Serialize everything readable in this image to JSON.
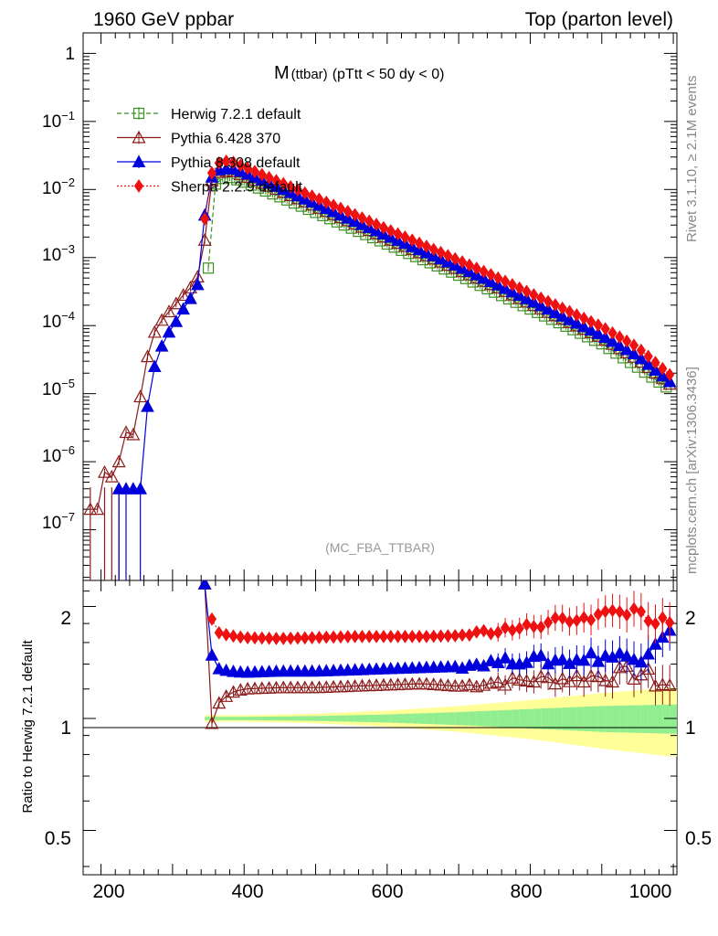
{
  "header": {
    "left": "1960 GeV ppbar",
    "right": "Top (parton level)"
  },
  "plot_title": {
    "main": "M",
    "sub": "(ttbar)",
    "rest": "(pTtt < 50 dy < 0)"
  },
  "watermark": "(MC_FBA_TTBAR)",
  "side_text": {
    "rivet": "Rivet 3.1.10, ≥ 2.1M events",
    "mcplots": "mcplots.cern.ch [arXiv:1306.3436]"
  },
  "ratio_ylabel": "Ratio to Herwig 7.2.1 default",
  "colors": {
    "herwig": "#3a8f1e",
    "pythia6": "#8b1a1a",
    "pythia8": "#0000dd",
    "sherpa": "#ee1111",
    "band_inner": "#90ee90",
    "band_outer": "#ffff99"
  },
  "chart_data": [
    {
      "type": "line",
      "panel": "main",
      "ylog": true,
      "xlim": [
        175,
        1005
      ],
      "ylim": [
        1.8e-08,
        2.0
      ],
      "x_ticks": [
        "200",
        "400",
        "600",
        "800",
        "1000"
      ],
      "y_ticks": [
        "1",
        "10^-1",
        "10^-2",
        "10^-3",
        "10^-4",
        "10^-5",
        "10^-6",
        "10^-7"
      ],
      "legend_position": "top-left",
      "series": [
        {
          "name": "Herwig 7.2.1 default",
          "key": "herwig",
          "marker": "open-square",
          "line": "dashed",
          "x": [
            350,
            360,
            370,
            380,
            400,
            450,
            500,
            550,
            600,
            650,
            700,
            750,
            800,
            850,
            900,
            950,
            995
          ],
          "y": [
            0.0007,
            0.012,
            0.0145,
            0.015,
            0.0128,
            0.0078,
            0.0046,
            0.0027,
            0.00158,
            0.00093,
            0.00055,
            0.00031,
            0.000175,
            9.8e-05,
            5.4e-05,
            2.45e-05,
            1.15e-05
          ]
        },
        {
          "name": "Pythia 6.428 370",
          "key": "pythia6",
          "marker": "open-triangle",
          "line": "solid",
          "x": [
            185,
            195,
            205,
            215,
            225,
            235,
            245,
            255,
            265,
            275,
            285,
            295,
            305,
            315,
            325,
            335,
            345,
            355,
            365,
            375,
            385,
            400,
            450,
            500,
            550,
            600,
            650,
            700,
            750,
            800,
            850,
            900,
            950,
            995
          ],
          "y": [
            2e-07,
            2e-07,
            7e-07,
            6e-07,
            1e-06,
            2.7e-06,
            2.5e-06,
            9e-06,
            3.5e-05,
            8e-05,
            0.00012,
            0.00016,
            0.00021,
            0.00028,
            0.00036,
            0.00052,
            0.0018,
            0.0135,
            0.0178,
            0.0186,
            0.0182,
            0.016,
            0.0096,
            0.0056,
            0.0033,
            0.0019,
            0.00112,
            0.00066,
            0.00038,
            0.00021,
            0.000118,
            6.6e-05,
            3.2e-05,
            1.38e-05
          ]
        },
        {
          "name": "Pythia 8.308 default",
          "key": "pythia8",
          "marker": "filled-triangle",
          "line": "solid",
          "x": [
            225,
            235,
            255,
            265,
            275,
            285,
            295,
            305,
            315,
            325,
            335,
            345,
            355,
            365,
            375,
            385,
            400,
            450,
            500,
            550,
            600,
            650,
            700,
            750,
            800,
            850,
            900,
            950,
            995
          ],
          "y": [
            4e-07,
            4e-07,
            4e-07,
            6.5e-06,
            2.5e-05,
            5e-05,
            8e-05,
            0.000115,
            0.000175,
            0.00025,
            0.0004,
            0.0042,
            0.0152,
            0.0195,
            0.0202,
            0.02,
            0.0178,
            0.0106,
            0.0062,
            0.0036,
            0.0021,
            0.00124,
            0.00074,
            0.00042,
            0.000235,
            0.00013,
            7.2e-05,
            3.6e-05,
            1.5e-05
          ]
        },
        {
          "name": "Sherpa 2.2.9 default",
          "key": "sherpa",
          "marker": "filled-diamond",
          "line": "dotted",
          "x": [
            345,
            355,
            365,
            375,
            385,
            400,
            450,
            500,
            550,
            600,
            650,
            700,
            750,
            800,
            850,
            900,
            950,
            995
          ],
          "y": [
            0.0037,
            0.0175,
            0.0245,
            0.026,
            0.025,
            0.0215,
            0.0128,
            0.0076,
            0.0045,
            0.0026,
            0.00154,
            0.00091,
            0.00053,
            0.0003,
            0.00017,
            9.6e-05,
            4.8e-05,
            1.9e-05
          ]
        }
      ]
    },
    {
      "type": "line",
      "panel": "ratio",
      "xlim": [
        175,
        1005
      ],
      "ylim": [
        0.38,
        2.35
      ],
      "x_ticks": [
        "200",
        "400",
        "600",
        "800",
        "1000"
      ],
      "y_ticks": [
        "0.5",
        "1",
        "2"
      ],
      "band": {
        "x": [
          345,
          400,
          500,
          600,
          700,
          800,
          900,
          995
        ],
        "inner_halfwidth": [
          0.01,
          0.01,
          0.015,
          0.025,
          0.04,
          0.06,
          0.08,
          0.09
        ],
        "outer_halfwidth": [
          0.02,
          0.02,
          0.03,
          0.05,
          0.08,
          0.12,
          0.17,
          0.21
        ]
      },
      "series": [
        {
          "key": "pythia6",
          "x": [
            345,
            355,
            365,
            380,
            400,
            450,
            500,
            550,
            600,
            650,
            700,
            750,
            800,
            850,
            900,
            950,
            995
          ],
          "y": [
            2.3,
            0.97,
            1.1,
            1.17,
            1.2,
            1.21,
            1.21,
            1.22,
            1.23,
            1.24,
            1.22,
            1.25,
            1.27,
            1.28,
            1.3,
            1.33,
            1.22
          ]
        },
        {
          "key": "pythia8",
          "x": [
            345,
            355,
            365,
            380,
            400,
            450,
            500,
            550,
            600,
            650,
            700,
            750,
            800,
            850,
            900,
            950,
            995
          ],
          "y": [
            2.3,
            1.48,
            1.36,
            1.34,
            1.33,
            1.34,
            1.34,
            1.35,
            1.36,
            1.37,
            1.38,
            1.42,
            1.44,
            1.43,
            1.48,
            1.45,
            1.77
          ]
        },
        {
          "key": "sherpa",
          "x": [
            355,
            365,
            380,
            400,
            450,
            500,
            550,
            600,
            650,
            700,
            750,
            800,
            850,
            900,
            950,
            995
          ],
          "y": [
            1.85,
            1.7,
            1.67,
            1.65,
            1.64,
            1.65,
            1.66,
            1.66,
            1.66,
            1.67,
            1.72,
            1.76,
            1.85,
            1.9,
            1.95,
            1.75
          ]
        }
      ]
    }
  ]
}
